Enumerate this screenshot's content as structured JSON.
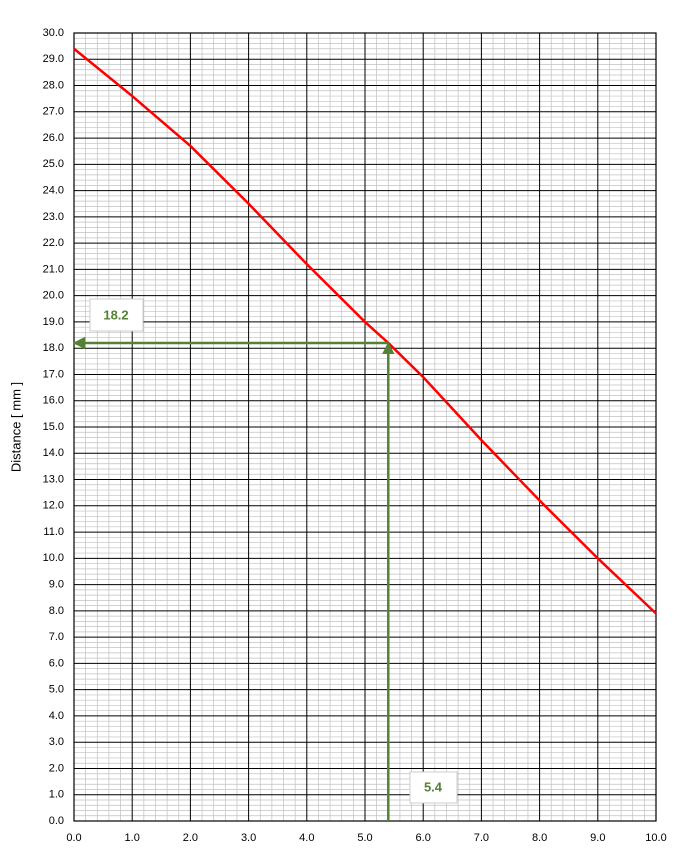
{
  "chart_data": {
    "type": "line",
    "y_label": "Distance    [ mm ]",
    "x": [
      0,
      1,
      2,
      3,
      4,
      5,
      5.4,
      6,
      7,
      8,
      9,
      10
    ],
    "series": [
      {
        "name": "Distance",
        "color": "#ff0000",
        "values": [
          29.4,
          27.6,
          25.7,
          23.5,
          21.2,
          19.0,
          18.2,
          16.9,
          14.5,
          12.2,
          10.0,
          7.9
        ]
      }
    ],
    "xlim": [
      0,
      10
    ],
    "ylim": [
      0,
      30
    ],
    "xticks": [
      {
        "value": 0,
        "label": "0.0"
      },
      {
        "value": 1,
        "label": "1.0"
      },
      {
        "value": 2,
        "label": "2.0"
      },
      {
        "value": 3,
        "label": "3.0"
      },
      {
        "value": 4,
        "label": "4.0"
      },
      {
        "value": 5,
        "label": "5.0"
      },
      {
        "value": 6,
        "label": "6.0"
      },
      {
        "value": 7,
        "label": "7.0"
      },
      {
        "value": 8,
        "label": "8.0"
      },
      {
        "value": 9,
        "label": "9.0"
      },
      {
        "value": 10,
        "label": "10.0"
      }
    ],
    "yticks": [
      {
        "value": 0,
        "label": "0.0"
      },
      {
        "value": 1,
        "label": "1.0"
      },
      {
        "value": 2,
        "label": "2.0"
      },
      {
        "value": 3,
        "label": "3.0"
      },
      {
        "value": 4,
        "label": "4.0"
      },
      {
        "value": 5,
        "label": "5.0"
      },
      {
        "value": 6,
        "label": "6.0"
      },
      {
        "value": 7,
        "label": "7.0"
      },
      {
        "value": 8,
        "label": "8.0"
      },
      {
        "value": 9,
        "label": "9.0"
      },
      {
        "value": 10,
        "label": "10.0"
      },
      {
        "value": 11,
        "label": "11.0"
      },
      {
        "value": 12,
        "label": "12.0"
      },
      {
        "value": 13,
        "label": "13.0"
      },
      {
        "value": 14,
        "label": "14.0"
      },
      {
        "value": 15,
        "label": "15.0"
      },
      {
        "value": 16,
        "label": "16.0"
      },
      {
        "value": 17,
        "label": "17.0"
      },
      {
        "value": 18,
        "label": "18.0"
      },
      {
        "value": 19,
        "label": "19.0"
      },
      {
        "value": 20,
        "label": "20.0"
      },
      {
        "value": 21,
        "label": "21.0"
      },
      {
        "value": 22,
        "label": "22.0"
      },
      {
        "value": 23,
        "label": "23.0"
      },
      {
        "value": 24,
        "label": "24.0"
      },
      {
        "value": 25,
        "label": "25.0"
      },
      {
        "value": 26,
        "label": "26.0"
      },
      {
        "value": 27,
        "label": "27.0"
      },
      {
        "value": 28,
        "label": "28.0"
      },
      {
        "value": 29,
        "label": "29.0"
      },
      {
        "value": 30,
        "label": "30.0"
      }
    ],
    "grid": true,
    "minor_grid": true,
    "annotation": {
      "x": 5.4,
      "y": 18.2,
      "color": "#548235"
    }
  }
}
